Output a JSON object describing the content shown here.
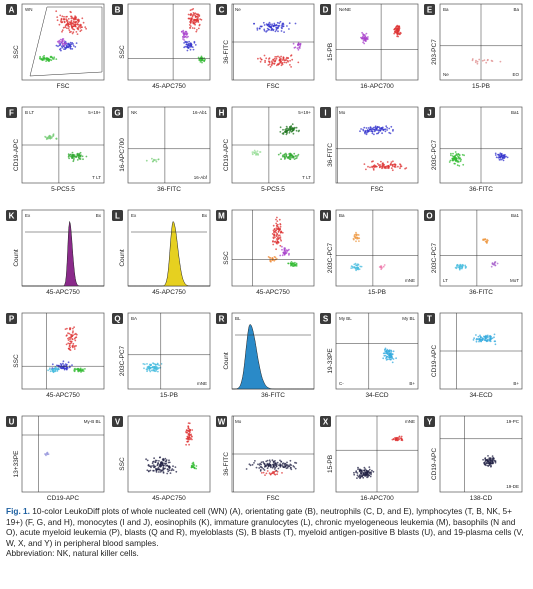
{
  "panels": [
    {
      "letter": "A",
      "y_label": "SSC",
      "x_label": "FSC",
      "gates": [
        "WN"
      ]
    },
    {
      "letter": "B",
      "y_label": "SSC",
      "x_label": "45-APC750",
      "gates": []
    },
    {
      "letter": "C",
      "y_label": "36-FITC",
      "x_label": "FSC",
      "gates": [
        "Ne"
      ]
    },
    {
      "letter": "D",
      "y_label": "15-PB",
      "x_label": "16-APC700",
      "gates": [
        "NeNE"
      ]
    },
    {
      "letter": "E",
      "y_label": "203-PC7",
      "x_label": "15-PB",
      "gates": [
        "Ba",
        "Ba",
        "Ne",
        "EO"
      ]
    },
    {
      "letter": "F",
      "y_label": "CD19-APC",
      "x_label": "5-PC5.5",
      "gates": [
        "B LT",
        "5+19+",
        "",
        "T LT"
      ]
    },
    {
      "letter": "G",
      "y_label": "16-APC700",
      "x_label": "36-FITC",
      "gates": [
        "NK",
        "16-Ab1",
        "",
        "16-Abf"
      ]
    },
    {
      "letter": "H",
      "y_label": "CD19-APC",
      "x_label": "5-PC5.5",
      "gates": [
        "",
        "5+19+",
        "",
        "T LT"
      ]
    },
    {
      "letter": "I",
      "y_label": "36-FITC",
      "x_label": "FSC",
      "gates": [
        "Mo"
      ]
    },
    {
      "letter": "J",
      "y_label": "203C-PC7",
      "x_label": "36-FITC",
      "gates": [
        "",
        "Ba1"
      ]
    },
    {
      "letter": "K",
      "y_label": "Count",
      "x_label": "45-APC750",
      "gates": [
        "Ex",
        "Bx"
      ]
    },
    {
      "letter": "L",
      "y_label": "Count",
      "x_label": "45-APC750",
      "gates": [
        "Ex",
        "Bx"
      ]
    },
    {
      "letter": "M",
      "y_label": "SSC",
      "x_label": "45-APC750",
      "gates": []
    },
    {
      "letter": "N",
      "y_label": "203C-PC7",
      "x_label": "15-PB",
      "gates": [
        "Ba",
        "",
        "",
        "mNE"
      ]
    },
    {
      "letter": "O",
      "y_label": "203C-PC7",
      "x_label": "36-FITC",
      "gates": [
        "",
        "Ba1",
        "LT",
        "MoT"
      ]
    },
    {
      "letter": "P",
      "y_label": "SSC",
      "x_label": "45-APC750",
      "gates": []
    },
    {
      "letter": "Q",
      "y_label": "203C-PC7",
      "x_label": "15-PB",
      "gates": [
        "BA",
        "",
        "",
        "mNE"
      ]
    },
    {
      "letter": "R",
      "y_label": "Count",
      "x_label": "36-FITC",
      "gates": [
        "BL"
      ]
    },
    {
      "letter": "S",
      "y_label": "19-33PE",
      "x_label": "34-ECD",
      "gates": [
        "My BL",
        "My BL",
        "C-",
        "B+"
      ]
    },
    {
      "letter": "T",
      "y_label": "CD19-APC",
      "x_label": "34-ECD",
      "gates": [
        "",
        "",
        "",
        "B+"
      ]
    },
    {
      "letter": "U",
      "y_label": "13+33PE",
      "x_label": "CD19-APC",
      "gates": [
        "",
        "My-B BL"
      ]
    },
    {
      "letter": "V",
      "y_label": "SSC",
      "x_label": "45-APC750",
      "gates": []
    },
    {
      "letter": "W",
      "y_label": "36-FITC",
      "x_label": "FSC",
      "gates": [
        "Mo"
      ]
    },
    {
      "letter": "X",
      "y_label": "15-PB",
      "x_label": "16-APC700",
      "gates": [
        "",
        "mNE"
      ]
    },
    {
      "letter": "Y",
      "y_label": "CD19-APC",
      "x_label": "138-CD",
      "gates": [
        "",
        "19-PC",
        "",
        "19-DE"
      ]
    }
  ],
  "caption": {
    "label": "Fig. 1.",
    "text": "10-color LeukoDiff plots of whole nucleated cell (WN) (A), orientating gate (B), neutrophils (C, D, and E), lymphocytes (T, B, NK, 5+ 19+) (F, G, and H), monocytes (I and J), eosinophils (K), immature granulocytes (L), chronic myelogeneous leukemia (M), basophils (N and O), acute myeloid leukemia (P), blasts (Q and R), myeloblasts (S), B blasts (T), myeloid antigen-positive B blasts (U), and 19-plasma cells (V, W, X, and Y) in peripheral blood samples.",
    "abbreviation": "Abbreviation: NK, natural killer cells."
  }
}
